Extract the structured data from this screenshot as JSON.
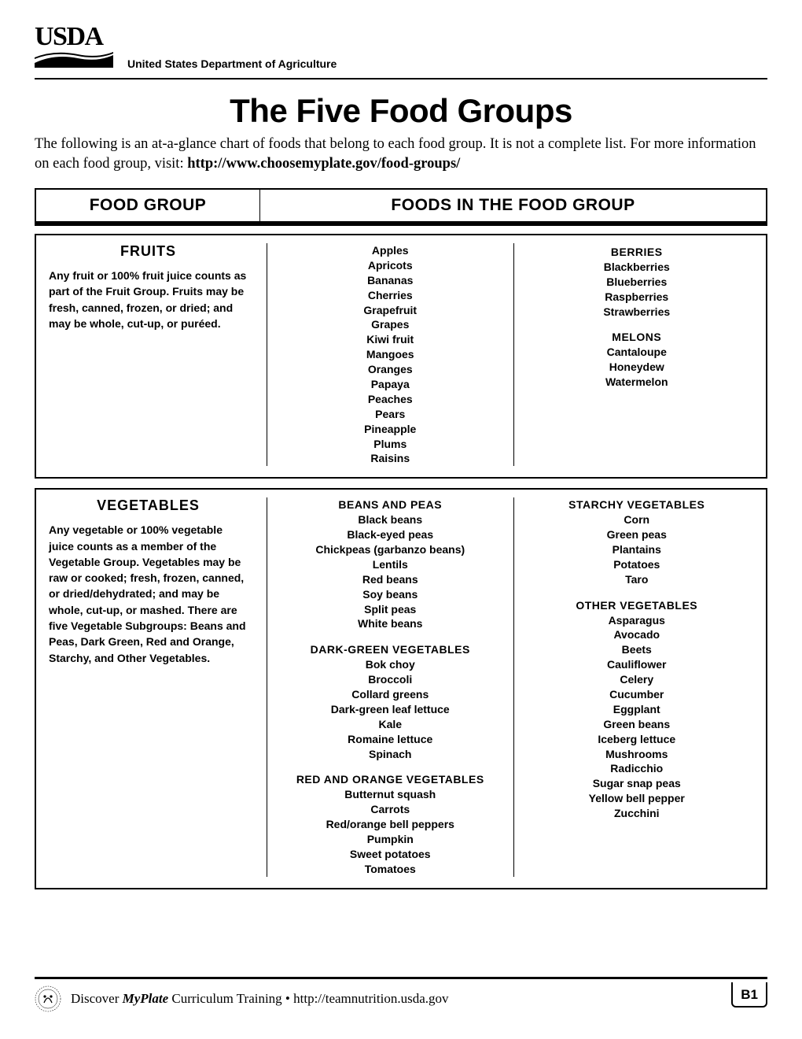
{
  "header": {
    "logo_text": "USDA",
    "department": "United States Department of Agriculture"
  },
  "title": "The Five Food Groups",
  "intro_text": "The following is an at-a-glance chart of foods that belong to each food group. It is not a complete list. For more information on each food group, visit: ",
  "intro_link": "http://www.choosemyplate.gov/food-groups/",
  "table_headers": {
    "left": "FOOD GROUP",
    "right": "FOODS IN THE FOOD GROUP"
  },
  "fruits": {
    "title": "FRUITS",
    "desc": "Any fruit or 100% fruit juice counts as part of the Fruit Group. Fruits may be fresh, canned, frozen, or dried; and may be whole, cut-up, or puréed.",
    "col1": [
      "Apples",
      "Apricots",
      "Bananas",
      "Cherries",
      "Grapefruit",
      "Grapes",
      "Kiwi fruit",
      "Mangoes",
      "Oranges",
      "Papaya",
      "Peaches",
      "Pears",
      "Pineapple",
      "Plums",
      "Raisins"
    ],
    "berries_head": "BERRIES",
    "berries": [
      "Blackberries",
      "Blueberries",
      "Raspberries",
      "Strawberries"
    ],
    "melons_head": "MELONS",
    "melons": [
      "Cantaloupe",
      "Honeydew",
      "Watermelon"
    ]
  },
  "vegetables": {
    "title": "VEGETABLES",
    "desc": "Any vegetable or 100% vegetable juice counts as a member of the Vegetable Group. Vegetables may be raw or cooked; fresh, frozen, canned, or dried/dehydrated; and may be whole, cut-up, or mashed. There are five Vegetable Subgroups: Beans and Peas, Dark Green, Red and Orange, Starchy, and Other Vegetables.",
    "beans_head": "BEANS AND PEAS",
    "beans": [
      "Black beans",
      "Black-eyed peas",
      "Chickpeas (garbanzo beans)",
      "Lentils",
      "Red beans",
      "Soy beans",
      "Split peas",
      "White beans"
    ],
    "darkgreen_head": "DARK-GREEN VEGETABLES",
    "darkgreen": [
      "Bok choy",
      "Broccoli",
      "Collard greens",
      "Dark-green leaf lettuce",
      "Kale",
      "Romaine lettuce",
      "Spinach"
    ],
    "redorange_head": "RED AND ORANGE VEGETABLES",
    "redorange": [
      "Butternut squash",
      "Carrots",
      "Red/orange bell peppers",
      "Pumpkin",
      "Sweet potatoes",
      "Tomatoes"
    ],
    "starchy_head": "STARCHY VEGETABLES",
    "starchy": [
      "Corn",
      "Green peas",
      "Plantains",
      "Potatoes",
      "Taro"
    ],
    "other_head": "OTHER VEGETABLES",
    "other": [
      "Asparagus",
      "Avocado",
      "Beets",
      "Cauliflower",
      "Celery",
      "Cucumber",
      "Eggplant",
      "Green beans",
      "Iceberg lettuce",
      "Mushrooms",
      "Radicchio",
      "Sugar snap peas",
      "Yellow bell pepper",
      "Zucchini"
    ]
  },
  "footer": {
    "discover": "Discover ",
    "myplate": "MyPlate",
    "rest": " Curriculum Training • http://teamnutrition.usda.gov",
    "page": "B1"
  }
}
